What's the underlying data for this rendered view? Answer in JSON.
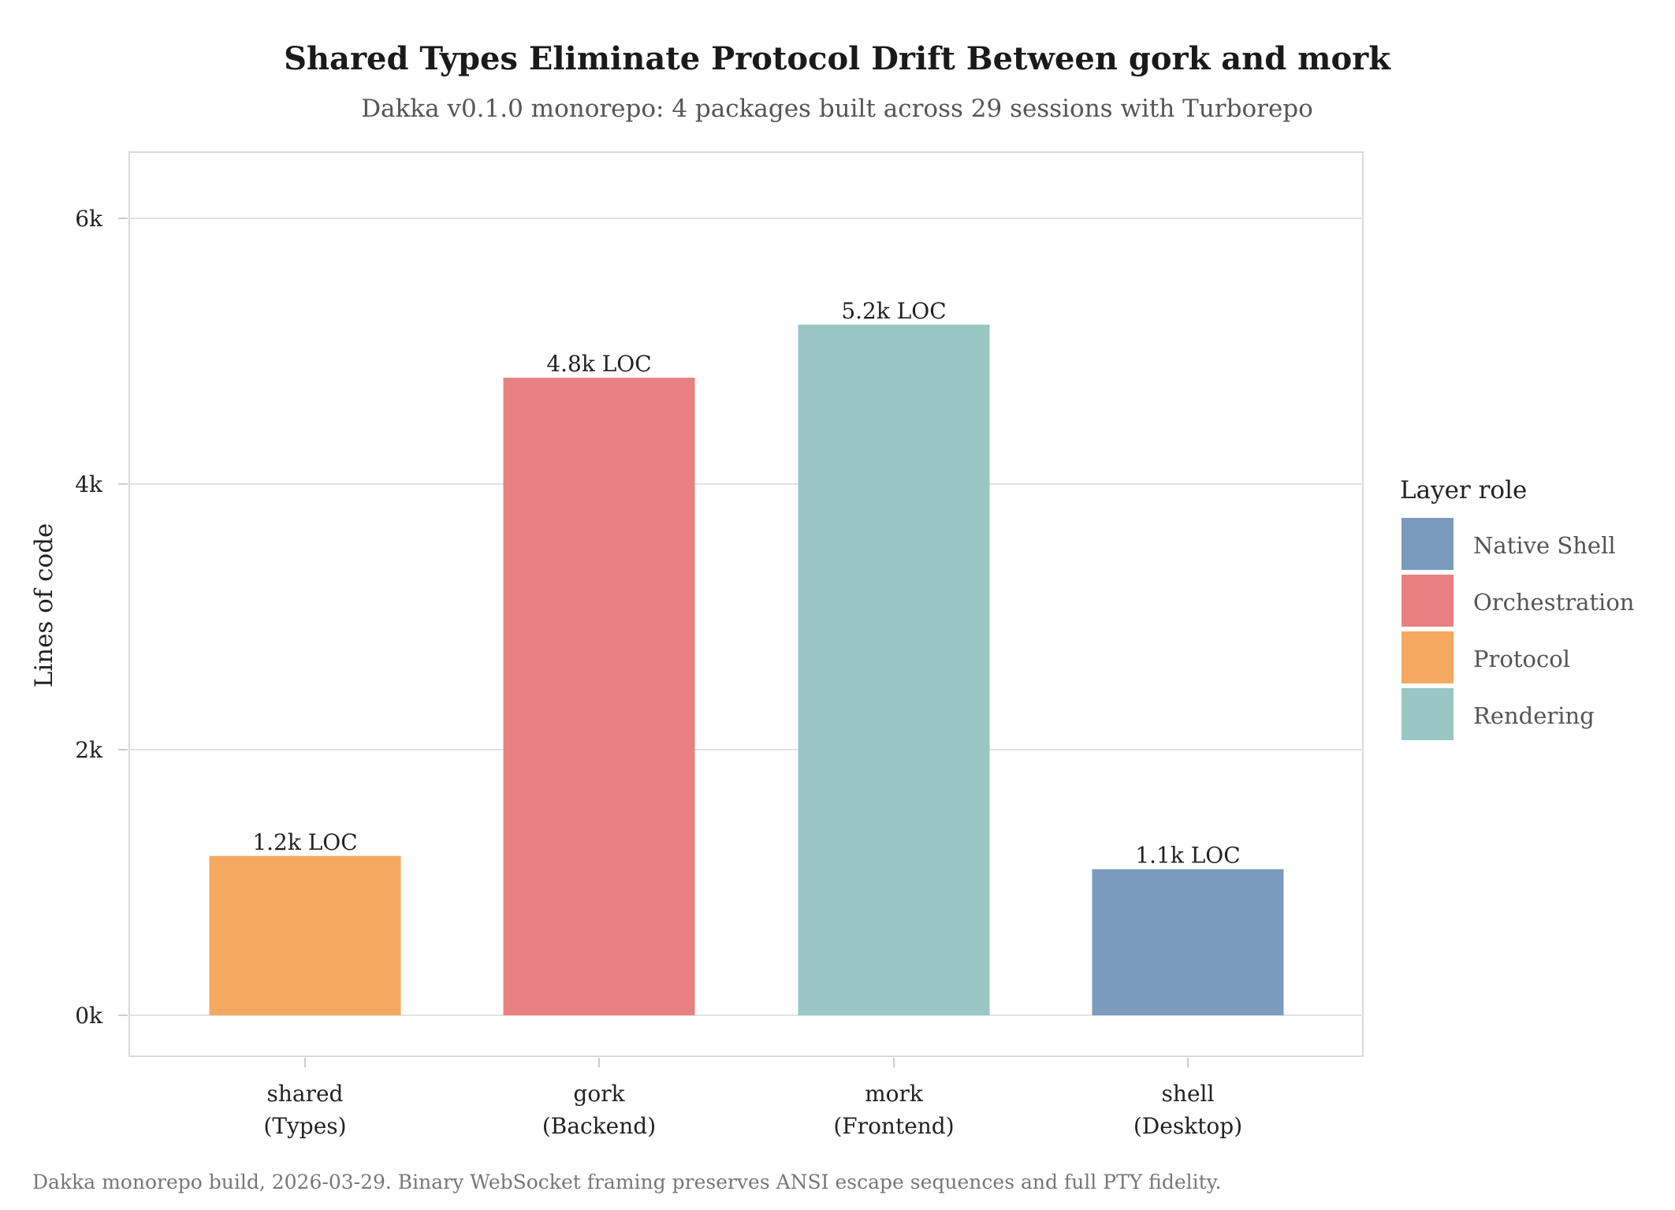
{
  "chart_data": {
    "type": "bar",
    "title": "Shared Types Eliminate Protocol Drift Between gork and mork",
    "subtitle": "Dakka v0.1.0 monorepo: 4 packages built across 29 sessions with Turborepo",
    "xlabel": "",
    "ylabel": "Lines of code",
    "ylim": [
      -300,
      6500
    ],
    "yticks": [
      0,
      2000,
      4000,
      6000
    ],
    "ytick_labels": [
      "0k",
      "2k",
      "4k",
      "6k"
    ],
    "grid": true,
    "categories": [
      {
        "line1": "shared",
        "line2": "(Types)"
      },
      {
        "line1": "gork",
        "line2": "(Backend)"
      },
      {
        "line1": "mork",
        "line2": "(Frontend)"
      },
      {
        "line1": "shell",
        "line2": "(Desktop)"
      }
    ],
    "values": [
      1200,
      4800,
      5200,
      1100
    ],
    "data_labels": [
      "1.2k LOC",
      "4.8k LOC",
      "5.2k LOC",
      "1.1k LOC"
    ],
    "roles": [
      "Protocol",
      "Orchestration",
      "Rendering",
      "Native Shell"
    ],
    "legend": {
      "title": "Layer role",
      "placement": "right",
      "entries": [
        {
          "label": "Native Shell",
          "color": "#7B9BBE"
        },
        {
          "label": "Orchestration",
          "color": "#E88081"
        },
        {
          "label": "Protocol",
          "color": "#F5A960"
        },
        {
          "label": "Rendering",
          "color": "#99C7C3"
        }
      ]
    },
    "caption": "Dakka monorepo build, 2026-03-29. Binary WebSocket framing preserves ANSI escape sequences and full PTY fidelity."
  }
}
